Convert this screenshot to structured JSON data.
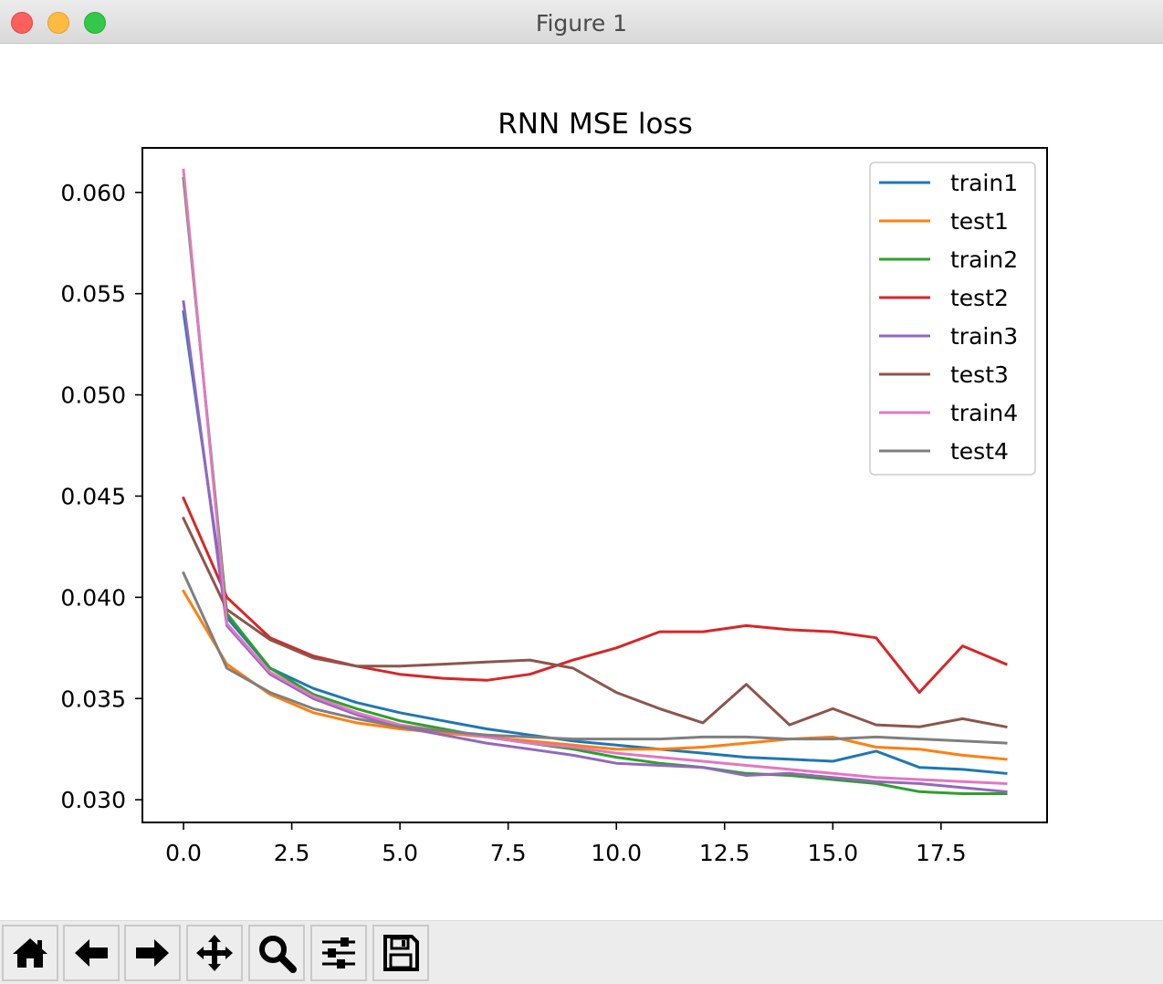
{
  "window": {
    "title": "Figure 1"
  },
  "toolbar": {
    "buttons": [
      {
        "name": "home-button",
        "icon": "home-icon"
      },
      {
        "name": "back-button",
        "icon": "arrow-left-icon"
      },
      {
        "name": "forward-button",
        "icon": "arrow-right-icon"
      },
      {
        "name": "pan-button",
        "icon": "move-icon"
      },
      {
        "name": "zoom-button",
        "icon": "search-icon"
      },
      {
        "name": "configure-subplots-button",
        "icon": "sliders-icon"
      },
      {
        "name": "save-button",
        "icon": "floppy-disk-icon"
      }
    ]
  },
  "chart_data": {
    "type": "line",
    "title": "RNN MSE loss",
    "xlabel": "",
    "ylabel": "",
    "xlim": [
      -0.95,
      19.95
    ],
    "ylim": [
      0.02888,
      0.0622
    ],
    "xticks": [
      0.0,
      2.5,
      5.0,
      7.5,
      10.0,
      12.5,
      15.0,
      17.5
    ],
    "xtick_labels": [
      "0.0",
      "2.5",
      "5.0",
      "7.5",
      "10.0",
      "12.5",
      "15.0",
      "17.5"
    ],
    "yticks": [
      0.03,
      0.035,
      0.04,
      0.045,
      0.05,
      0.055,
      0.06
    ],
    "ytick_labels": [
      "0.030",
      "0.035",
      "0.040",
      "0.045",
      "0.050",
      "0.055",
      "0.060"
    ],
    "legend_position": "top-right",
    "x": [
      0,
      1,
      2,
      3,
      4,
      5,
      6,
      7,
      8,
      9,
      10,
      11,
      12,
      13,
      14,
      15,
      16,
      17,
      18,
      19
    ],
    "series": [
      {
        "name": "train1",
        "color": "#1f77b4",
        "values": [
          0.0541,
          0.039,
          0.0365,
          0.0355,
          0.0348,
          0.0343,
          0.0339,
          0.0335,
          0.0332,
          0.0329,
          0.0327,
          0.0325,
          0.0323,
          0.0321,
          0.032,
          0.0319,
          0.0324,
          0.0316,
          0.0315,
          0.0313
        ]
      },
      {
        "name": "test1",
        "color": "#ff7f0e",
        "values": [
          0.0403,
          0.0367,
          0.0352,
          0.0343,
          0.0338,
          0.0335,
          0.0333,
          0.0331,
          0.0329,
          0.0327,
          0.0325,
          0.0325,
          0.0326,
          0.0328,
          0.033,
          0.0331,
          0.0326,
          0.0325,
          0.0322,
          0.032
        ]
      },
      {
        "name": "train2",
        "color": "#2ca02c",
        "values": [
          0.0607,
          0.0392,
          0.0365,
          0.0352,
          0.0345,
          0.0339,
          0.0335,
          0.0331,
          0.0328,
          0.0325,
          0.0321,
          0.0318,
          0.0316,
          0.0313,
          0.0312,
          0.031,
          0.0308,
          0.0304,
          0.0303,
          0.0303
        ]
      },
      {
        "name": "test2",
        "color": "#d62728",
        "values": [
          0.0449,
          0.04,
          0.038,
          0.0371,
          0.0366,
          0.0362,
          0.036,
          0.0359,
          0.0362,
          0.0369,
          0.0375,
          0.0383,
          0.0383,
          0.0386,
          0.0384,
          0.0383,
          0.038,
          0.0353,
          0.0376,
          0.0367
        ]
      },
      {
        "name": "train3",
        "color": "#9467bd",
        "values": [
          0.0546,
          0.0386,
          0.0362,
          0.035,
          0.0342,
          0.0336,
          0.0332,
          0.0328,
          0.0325,
          0.0322,
          0.0318,
          0.0317,
          0.0316,
          0.0312,
          0.0313,
          0.0311,
          0.0309,
          0.0308,
          0.0306,
          0.0304
        ]
      },
      {
        "name": "test3",
        "color": "#8c564b",
        "values": [
          0.0439,
          0.0394,
          0.0379,
          0.037,
          0.0366,
          0.0366,
          0.0367,
          0.0368,
          0.0369,
          0.0365,
          0.0353,
          0.0345,
          0.0338,
          0.0357,
          0.0337,
          0.0345,
          0.0337,
          0.0336,
          0.034,
          0.0336
        ]
      },
      {
        "name": "train4",
        "color": "#e377c2",
        "values": [
          0.0611,
          0.0387,
          0.0363,
          0.0351,
          0.0343,
          0.0337,
          0.0334,
          0.0331,
          0.0328,
          0.0326,
          0.0323,
          0.0321,
          0.0319,
          0.0317,
          0.0315,
          0.0313,
          0.0311,
          0.031,
          0.0309,
          0.0308
        ]
      },
      {
        "name": "test4",
        "color": "#7f7f7f",
        "values": [
          0.0412,
          0.0365,
          0.0353,
          0.0345,
          0.034,
          0.0336,
          0.0334,
          0.0332,
          0.0331,
          0.033,
          0.033,
          0.033,
          0.0331,
          0.0331,
          0.033,
          0.033,
          0.0331,
          0.033,
          0.0329,
          0.0328
        ]
      }
    ]
  }
}
